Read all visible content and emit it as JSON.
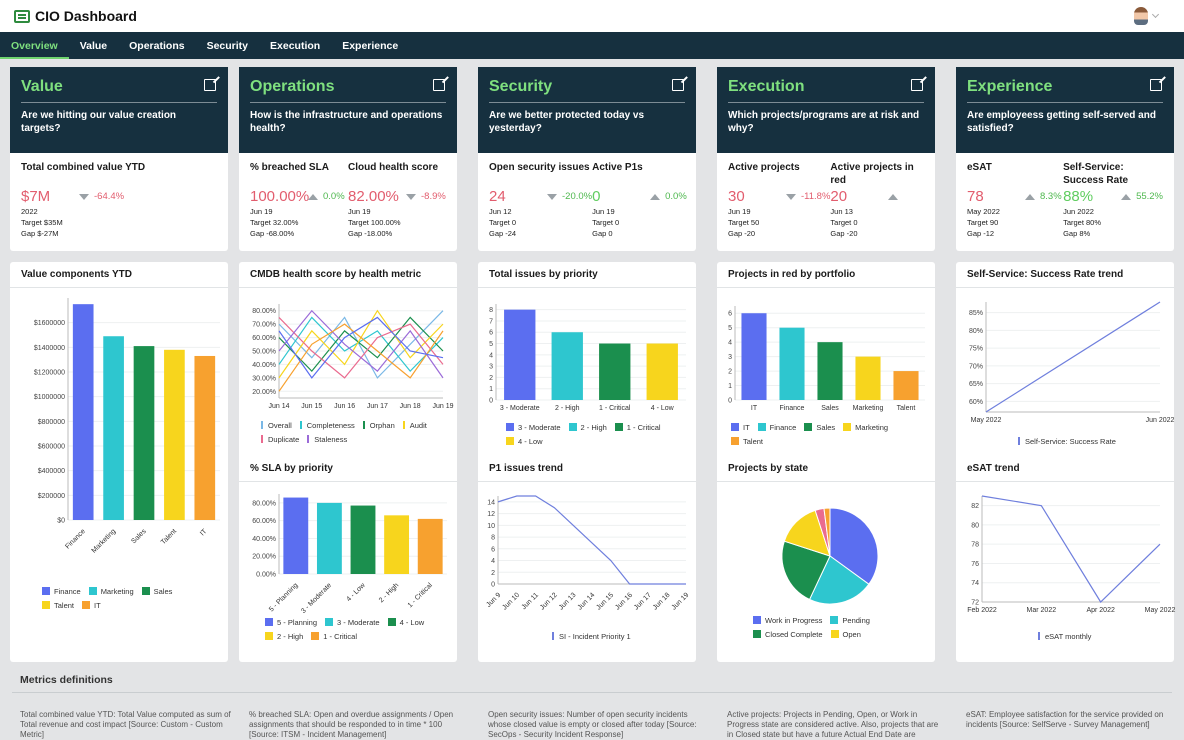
{
  "app": {
    "title": "CIO Dashboard"
  },
  "nav": {
    "tabs": [
      "Overview",
      "Value",
      "Operations",
      "Security",
      "Execution",
      "Experience"
    ],
    "active": "Overview"
  },
  "cards": [
    {
      "title": "Value",
      "question": "Are we hitting our value creation targets?",
      "kpis": [
        {
          "label": "Total combined value YTD",
          "value": "$7M",
          "value_color": "red",
          "trend": "down",
          "delta": "-64.4%",
          "delta_color": "red",
          "lines": [
            "2022",
            "Target $35M",
            "Gap $-27M"
          ]
        }
      ]
    },
    {
      "title": "Operations",
      "question": "How is the infrastructure and operations health?",
      "kpis": [
        {
          "label": "% breached SLA",
          "value": "100.00%",
          "value_color": "red",
          "trend": "up",
          "delta": "0.0%",
          "delta_color": "green",
          "lines": [
            "Jun 19",
            "Target 32.00%",
            "Gap -68.00%"
          ]
        },
        {
          "label": "Cloud health score",
          "value": "82.00%",
          "value_color": "red",
          "trend": "down",
          "delta": "-8.9%",
          "delta_color": "red",
          "lines": [
            "Jun 19",
            "Target 100.00%",
            "Gap -18.00%"
          ]
        }
      ]
    },
    {
      "title": "Security",
      "question": "Are we better protected today vs yesterday?",
      "kpis": [
        {
          "label": "Open security issues",
          "value": "24",
          "value_color": "red",
          "trend": "down",
          "delta": "-20.0%",
          "delta_color": "green",
          "lines": [
            "Jun 12",
            "Target 0",
            "Gap -24"
          ]
        },
        {
          "label": "Active P1s",
          "value": "0",
          "value_color": "green",
          "trend": "up",
          "delta": "0.0%",
          "delta_color": "green",
          "lines": [
            "Jun 19",
            "Target 0",
            "Gap 0"
          ]
        }
      ]
    },
    {
      "title": "Execution",
      "question": "Which projects/programs are at risk and why?",
      "kpis": [
        {
          "label": "Active projects",
          "value": "30",
          "value_color": "red",
          "trend": "down",
          "delta": "-11.8%",
          "delta_color": "red",
          "lines": [
            "Jun 19",
            "Target 50",
            "Gap -20"
          ]
        },
        {
          "label": "Active projects in red",
          "value": "20",
          "value_color": "red",
          "trend": "up",
          "delta": "",
          "delta_color": "red",
          "lines": [
            "Jun 13",
            "Target 0",
            "Gap -20"
          ]
        }
      ]
    },
    {
      "title": "Experience",
      "question": "Are employeess getting self-served and satisfied?",
      "kpis": [
        {
          "label": "eSAT",
          "value": "78",
          "value_color": "red",
          "trend": "up",
          "delta": "8.3%",
          "delta_color": "green",
          "lines": [
            "May 2022",
            "Target 90",
            "Gap -12"
          ]
        },
        {
          "label": "Self-Service: Success Rate",
          "value": "88%",
          "value_color": "green",
          "trend": "up",
          "delta": "55.2%",
          "delta_color": "green",
          "lines": [
            "Jun 2022",
            "Target 80%",
            "Gap 8%"
          ]
        }
      ]
    }
  ],
  "colors": {
    "blue": "#5b6ef0",
    "teal": "#2ec6cf",
    "green": "#1b8f4e",
    "yellow": "#f7d51d",
    "orange": "#f7a12f",
    "lightblue": "#7ab8e6",
    "pink": "#ea6b8f",
    "purple": "#9b6bd8",
    "line": "#6f7fdd"
  },
  "chart_data": [
    {
      "id": "value_components",
      "title": "Value components YTD",
      "type": "bar",
      "categories": [
        "Finance",
        "Marketing",
        "Sales",
        "Talent",
        "IT"
      ],
      "values": [
        1750000,
        1490000,
        1410000,
        1380000,
        1330000
      ],
      "yticks": [
        "$0",
        "$200000",
        "$400000",
        "$600000",
        "$800000",
        "$1000000",
        "$1200000",
        "$1400000",
        "$1600000"
      ],
      "ylim": [
        0,
        1800000
      ]
    },
    {
      "id": "cmdb_health",
      "title": "CMDB health score by health metric",
      "type": "line",
      "x": [
        "Jun 14",
        "Jun 15",
        "Jun 16",
        "Jun 17",
        "Jun 18",
        "Jun 19"
      ],
      "yticks": [
        "20.00%",
        "30.00%",
        "40.00%",
        "50.00%",
        "60.00%",
        "70.00%",
        "80.00%"
      ],
      "ylim": [
        15,
        85
      ],
      "series": [
        {
          "name": "Overall",
          "values": [
            70,
            45,
            75,
            30,
            55,
            80
          ]
        },
        {
          "name": "Completeness",
          "values": [
            40,
            75,
            50,
            65,
            35,
            60
          ]
        },
        {
          "name": "Orphan",
          "values": [
            60,
            35,
            65,
            45,
            75,
            50
          ]
        },
        {
          "name": "Audit",
          "values": [
            30,
            65,
            40,
            80,
            45,
            70
          ]
        },
        {
          "name": "Duplicate",
          "values": [
            75,
            50,
            30,
            60,
            70,
            40
          ]
        },
        {
          "name": "Staleness",
          "values": [
            50,
            80,
            55,
            35,
            65,
            30
          ]
        },
        {
          "name": "",
          "values": [
            20,
            55,
            70,
            50,
            30,
            65
          ]
        },
        {
          "name": "",
          "values": [
            65,
            30,
            60,
            75,
            50,
            45
          ]
        }
      ]
    },
    {
      "id": "total_issues",
      "title": "Total issues by priority",
      "type": "bar",
      "categories": [
        "3 - Moderate",
        "2 - High",
        "1 - Critical",
        "4 - Low"
      ],
      "legend": [
        "3 - Moderate",
        "2 - High",
        "1 - Critical",
        "4 - Low"
      ],
      "values": [
        8,
        6,
        5,
        5
      ],
      "yticks": [
        "0",
        "1",
        "2",
        "3",
        "4",
        "5",
        "6",
        "7",
        "8"
      ],
      "ylim": [
        0,
        8.5
      ]
    },
    {
      "id": "projects_red",
      "title": "Projects in red by portfolio",
      "type": "bar",
      "categories": [
        "IT",
        "Finance",
        "Sales",
        "Marketing",
        "Talent"
      ],
      "values": [
        6,
        5,
        4,
        3,
        2
      ],
      "yticks": [
        "0",
        "1",
        "2",
        "3",
        "4",
        "5",
        "6"
      ],
      "ylim": [
        0,
        6.5
      ]
    },
    {
      "id": "ss_trend",
      "title": "Self-Service: Success Rate trend",
      "type": "line",
      "x": [
        "May 2022",
        "Jun 2022"
      ],
      "series": [
        {
          "name": "Self-Service: Success Rate",
          "values": [
            57,
            88
          ]
        }
      ],
      "yticks": [
        "60%",
        "65%",
        "70%",
        "75%",
        "80%",
        "85%"
      ],
      "ylim": [
        57,
        88
      ]
    },
    {
      "id": "sla_priority",
      "title": "% SLA by priority",
      "type": "bar",
      "categories": [
        "5 - Planning",
        "3 - Moderate",
        "4 - Low",
        "2 - High",
        "1 - Critical"
      ],
      "values": [
        86,
        80,
        77,
        66,
        62
      ],
      "yticks": [
        "0.00%",
        "20.00%",
        "40.00%",
        "60.00%",
        "80.00%"
      ],
      "ylim": [
        0,
        90
      ]
    },
    {
      "id": "p1_trend",
      "title": "P1 issues trend",
      "type": "line",
      "x": [
        "Jun 9",
        "Jun 10",
        "Jun 11",
        "Jun 12",
        "Jun 13",
        "Jun 14",
        "Jun 15",
        "Jun 16",
        "Jun 17",
        "Jun 18",
        "Jun 19"
      ],
      "series": [
        {
          "name": "SI - Incident Priority 1",
          "values": [
            14,
            15,
            15,
            13,
            10,
            7,
            4,
            0,
            0,
            0,
            0
          ]
        }
      ],
      "yticks": [
        "0",
        "2",
        "4",
        "6",
        "8",
        "10",
        "12",
        "14"
      ],
      "ylim": [
        0,
        15
      ]
    },
    {
      "id": "projects_state",
      "title": "Projects by state",
      "type": "pie",
      "categories": [
        "Work in Progress",
        "Pending",
        "Closed Complete",
        "Open"
      ],
      "values": [
        35,
        22,
        23,
        15
      ]
    },
    {
      "id": "esat_trend",
      "title": "eSAT trend",
      "type": "line",
      "x": [
        "Feb 2022",
        "Mar 2022",
        "Apr 2022",
        "May 2022"
      ],
      "series": [
        {
          "name": "eSAT monthly",
          "values": [
            83,
            82,
            72,
            78
          ]
        }
      ],
      "yticks": [
        "72",
        "74",
        "76",
        "78",
        "80",
        "82"
      ],
      "ylim": [
        72,
        83
      ]
    }
  ],
  "metrics": {
    "title": "Metrics definitions",
    "defs": [
      "Total combined value YTD: Total Value computed as sum of Total revenue and cost impact [Source: Custom - Custom Metric]",
      "% breached SLA: Open and overdue assignments / Open assignments that should be responded to in time * 100 [Source: ITSM - Incident Management]",
      "Open security issues: Number of open security incidents whose closed value is empty or closed after today [Source: SecOps - Security Incident Response]",
      "Active projects: Projects in Pending, Open, or Work in Progress state are considered active. Also, projects that are in Closed state but have a future Actual End Date are",
      "eSAT: Employee satisfaction for the service provided on incidents [Source: SelfServe - Survey Management]"
    ]
  }
}
